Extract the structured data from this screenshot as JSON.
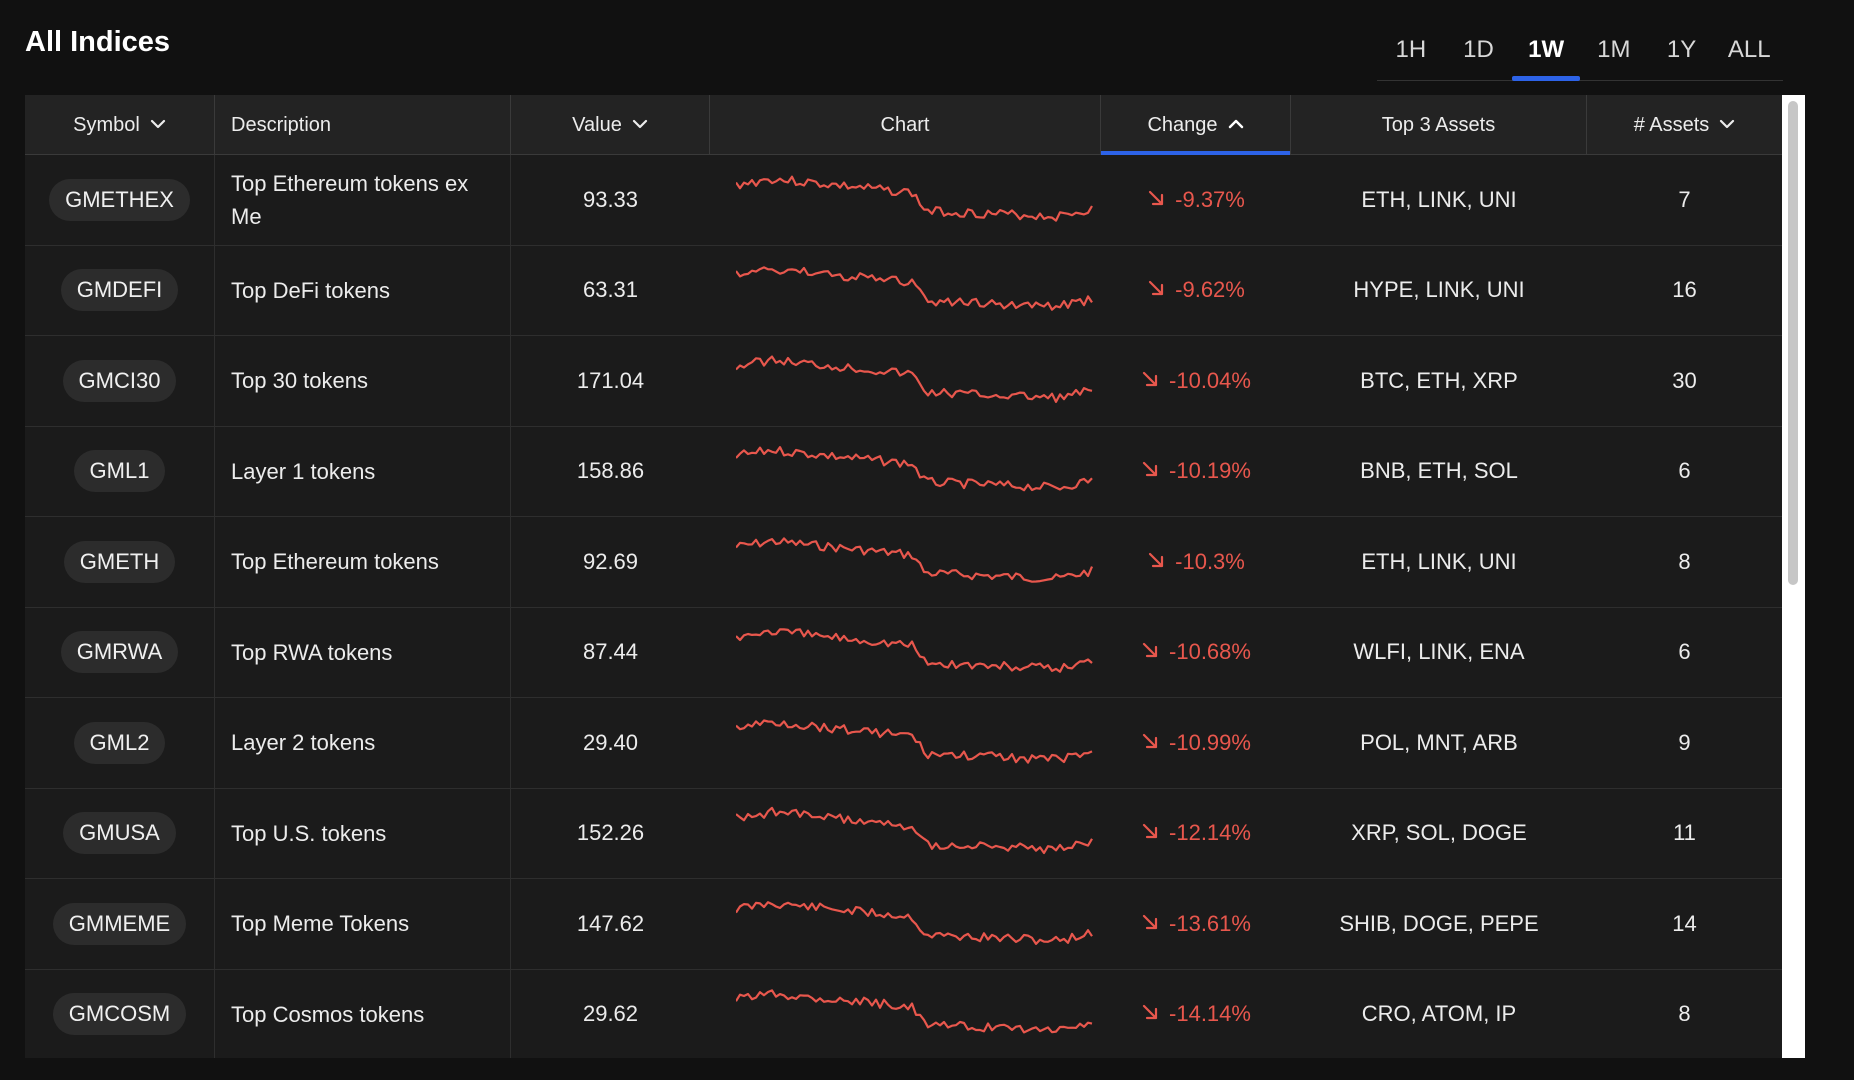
{
  "title": "All Indices",
  "timeframes": [
    {
      "label": "1H",
      "active": false
    },
    {
      "label": "1D",
      "active": false
    },
    {
      "label": "1W",
      "active": true
    },
    {
      "label": "1M",
      "active": false
    },
    {
      "label": "1Y",
      "active": false
    },
    {
      "label": "ALL",
      "active": false
    }
  ],
  "columns": {
    "symbol": "Symbol",
    "description": "Description",
    "value": "Value",
    "chart": "Chart",
    "change": "Change",
    "top3": "Top 3 Assets",
    "assets": "# Assets"
  },
  "colors": {
    "negative": "#e8574d",
    "accent": "#2d63e8"
  },
  "rows": [
    {
      "symbol": "GMETHEX",
      "description": "Top Ethereum tokens ex Me",
      "value": "93.33",
      "change": "-9.37%",
      "top3": "ETH, LINK, UNI",
      "assets": "7"
    },
    {
      "symbol": "GMDEFI",
      "description": "Top DeFi tokens",
      "value": "63.31",
      "change": "-9.62%",
      "top3": "HYPE, LINK, UNI",
      "assets": "16"
    },
    {
      "symbol": "GMCI30",
      "description": "Top 30 tokens",
      "value": "171.04",
      "change": "-10.04%",
      "top3": "BTC, ETH, XRP",
      "assets": "30"
    },
    {
      "symbol": "GML1",
      "description": "Layer 1 tokens",
      "value": "158.86",
      "change": "-10.19%",
      "top3": "BNB, ETH, SOL",
      "assets": "6"
    },
    {
      "symbol": "GMETH",
      "description": "Top Ethereum tokens",
      "value": "92.69",
      "change": "-10.3%",
      "top3": "ETH, LINK, UNI",
      "assets": "8"
    },
    {
      "symbol": "GMRWA",
      "description": "Top RWA tokens",
      "value": "87.44",
      "change": "-10.68%",
      "top3": "WLFI, LINK, ENA",
      "assets": "6"
    },
    {
      "symbol": "GML2",
      "description": "Layer 2 tokens",
      "value": "29.40",
      "change": "-10.99%",
      "top3": "POL, MNT, ARB",
      "assets": "9"
    },
    {
      "symbol": "GMUSA",
      "description": "Top U.S. tokens",
      "value": "152.26",
      "change": "-12.14%",
      "top3": "XRP, SOL, DOGE",
      "assets": "11"
    },
    {
      "symbol": "GMMEME",
      "description": "Top Meme Tokens",
      "value": "147.62",
      "change": "-13.61%",
      "top3": "SHIB, DOGE, PEPE",
      "assets": "14"
    },
    {
      "symbol": "GMCOSM",
      "description": "Top Cosmos tokens",
      "value": "29.62",
      "change": "-14.14%",
      "top3": "CRO, ATOM, IP",
      "assets": "8"
    }
  ]
}
